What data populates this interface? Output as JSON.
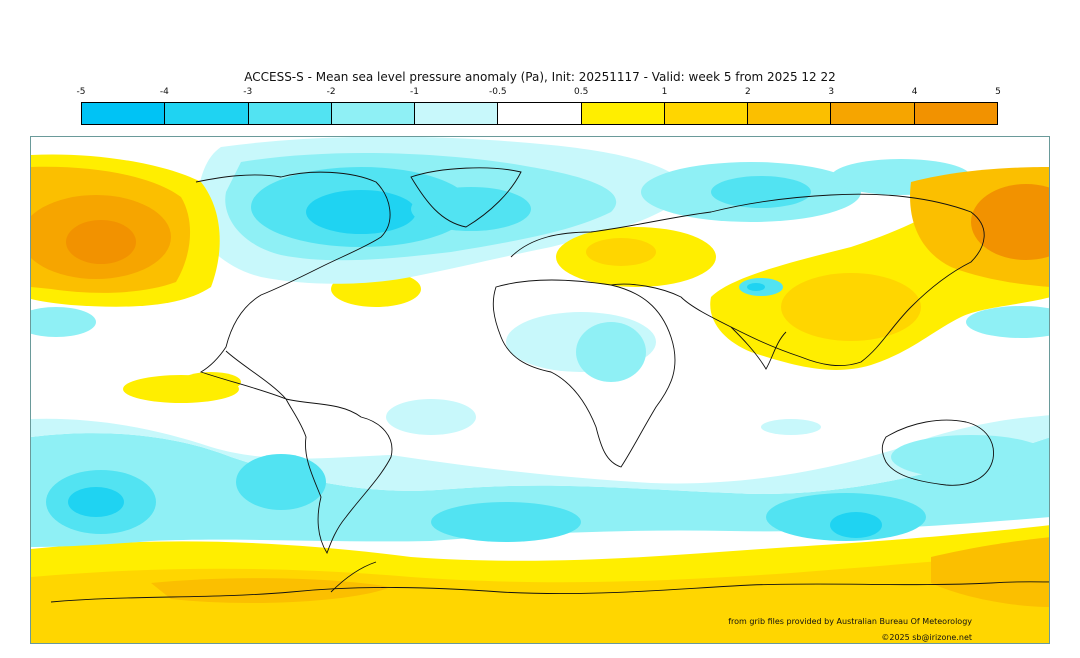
{
  "map": {
    "title": "ACCESS-S - Mean sea level pressure anomaly (Pa), Init: 20251117 - Valid: week 5 from 2025 12 22",
    "colorbar": {
      "ticks": [
        "-5",
        "-4",
        "-3",
        "-2",
        "-1",
        "-0.5",
        "0.5",
        "1",
        "2",
        "3",
        "4",
        "5"
      ],
      "colors": [
        "#00c3f5",
        "#1fd3f2",
        "#52e3f2",
        "#8ff0f5",
        "#c8f8fb",
        "#ffffff",
        "#ffee00",
        "#ffd600",
        "#fbbf00",
        "#f6a500",
        "#f29200"
      ]
    },
    "credits": {
      "source": "from grib files provided by Australian Bureau Of Meteorology",
      "copyright": "©2025 sb@irizone.net"
    }
  }
}
